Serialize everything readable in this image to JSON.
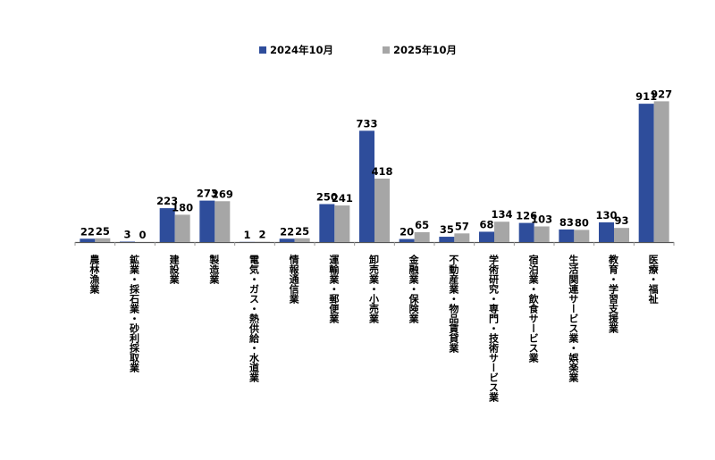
{
  "chart_data": {
    "type": "bar",
    "title": "",
    "xlabel": "",
    "ylabel": "",
    "ylim": [
      0,
      1000
    ],
    "grid": false,
    "legend_position": "top-center",
    "categories": [
      "農林漁業",
      "鉱業・採石業・砂利採取業",
      "建設業",
      "製造業",
      "電気・ガス・熱供給・水道業",
      "情報通信業",
      "運輸業・郵便業",
      "卸売業・小売業",
      "金融業・保険業",
      "不動産業・物品賃貸業",
      "学術研究・専門・技術サービス業",
      "宿泊業・飲食サービス業",
      "生活関連サービス業・娯楽業",
      "教育・学習支援業",
      "医療・福祉"
    ],
    "series": [
      {
        "name": "2024年10月",
        "color": "#2e4d9b",
        "values": [
          22,
          3,
          223,
          273,
          1,
          22,
          250,
          733,
          20,
          35,
          68,
          126,
          83,
          130,
          911
        ]
      },
      {
        "name": "2025年10月",
        "color": "#a6a6a6",
        "values": [
          25,
          0,
          180,
          269,
          2,
          25,
          241,
          418,
          65,
          57,
          134,
          103,
          80,
          93,
          927
        ]
      }
    ]
  }
}
